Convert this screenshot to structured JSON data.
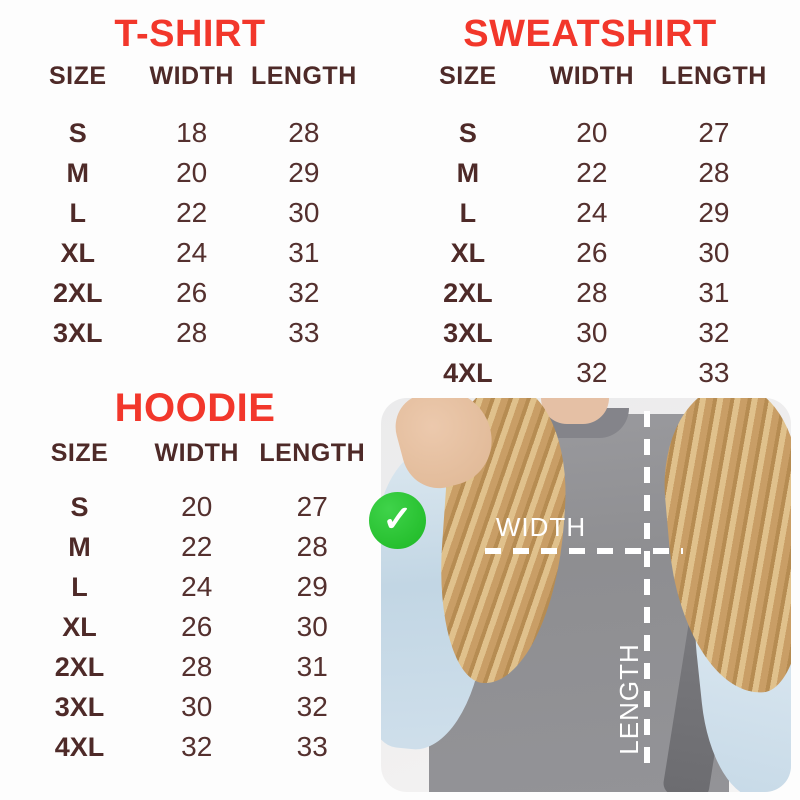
{
  "tables": {
    "tshirt": {
      "title": "T-SHIRT",
      "headers": [
        "SIZE",
        "WIDTH",
        "LENGTH"
      ],
      "rows": [
        [
          "S",
          "18",
          "28"
        ],
        [
          "M",
          "20",
          "29"
        ],
        [
          "L",
          "22",
          "30"
        ],
        [
          "XL",
          "24",
          "31"
        ],
        [
          "2XL",
          "26",
          "32"
        ],
        [
          "3XL",
          "28",
          "33"
        ]
      ]
    },
    "sweatshirt": {
      "title": "SWEATSHIRT",
      "headers": [
        "SIZE",
        "WIDTH",
        "LENGTH"
      ],
      "rows": [
        [
          "S",
          "20",
          "27"
        ],
        [
          "M",
          "22",
          "28"
        ],
        [
          "L",
          "24",
          "29"
        ],
        [
          "XL",
          "26",
          "30"
        ],
        [
          "2XL",
          "28",
          "31"
        ],
        [
          "3XL",
          "30",
          "32"
        ],
        [
          "4XL",
          "32",
          "33"
        ]
      ]
    },
    "hoodie": {
      "title": "HOODIE",
      "headers": [
        "SIZE",
        "WIDTH",
        "LENGTH"
      ],
      "rows": [
        [
          "S",
          "20",
          "27"
        ],
        [
          "M",
          "22",
          "28"
        ],
        [
          "L",
          "24",
          "29"
        ],
        [
          "XL",
          "26",
          "30"
        ],
        [
          "2XL",
          "28",
          "31"
        ],
        [
          "3XL",
          "30",
          "32"
        ],
        [
          "4XL",
          "32",
          "33"
        ]
      ]
    }
  },
  "photo": {
    "width_label": "WIDTH",
    "length_label": "LENGTH",
    "check_icon": "✓"
  },
  "colors": {
    "accent_red": "#f2372b",
    "text_maroon": "#4e2a28",
    "check_green": "#1fbe27",
    "shirt_gray": "#8f8f92",
    "denim_blue": "#c9dbe8",
    "hair_blonde": "#c79e66",
    "photo_background": "#ededee"
  }
}
